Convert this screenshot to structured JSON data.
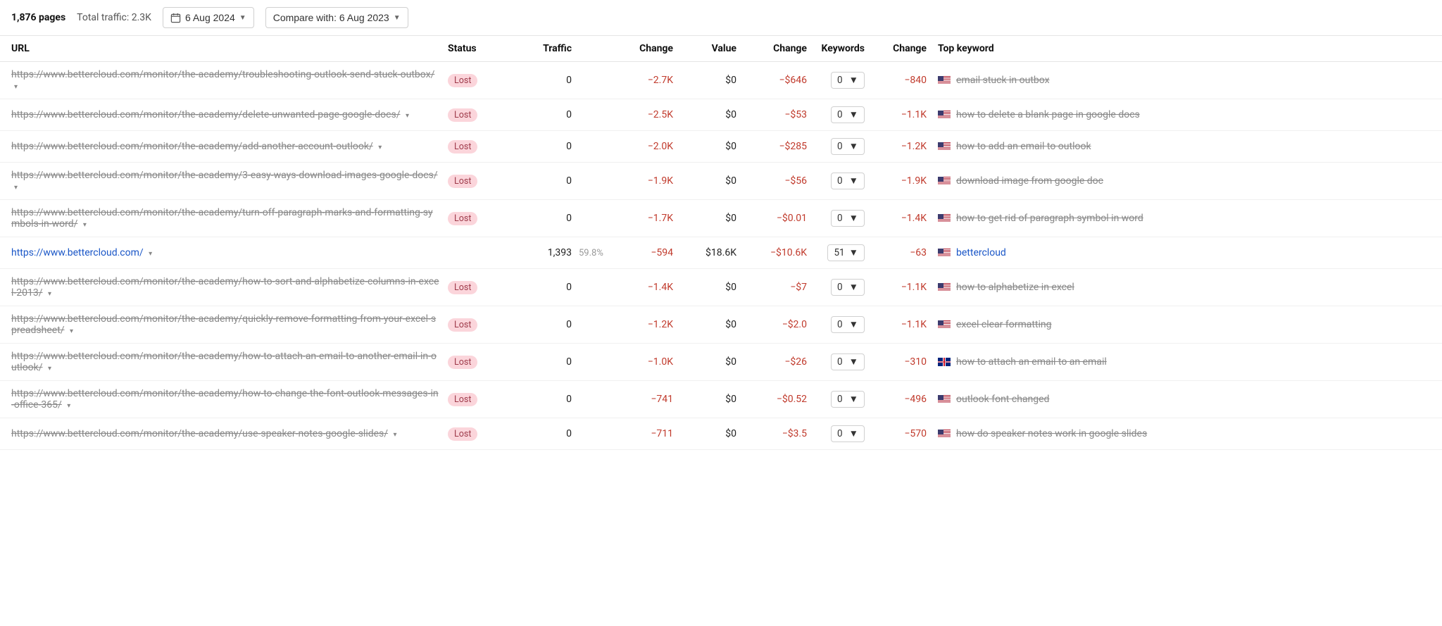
{
  "toolbar": {
    "pages_count": "1,876 pages",
    "total_traffic": "Total traffic: 2.3K",
    "date_btn": "6 Aug 2024",
    "compare_btn": "Compare with: 6 Aug 2023"
  },
  "columns": {
    "url": "URL",
    "status": "Status",
    "traffic": "Traffic",
    "change1": "Change",
    "value": "Value",
    "change2": "Change",
    "keywords": "Keywords",
    "change3": "Change",
    "topkw": "Top keyword"
  },
  "rows": [
    {
      "url": "https://www.bettercloud.com/monitor/the-academy/troubleshooting-outlook-send-stuck-outbox/",
      "lost": true,
      "status": "Lost",
      "traffic": "0",
      "traffic_pct": "",
      "change1": "−2.7K",
      "value": "$0",
      "change2": "−$646",
      "keywords": "0",
      "change3": "−840",
      "flag": "us",
      "topkw": "email stuck in outbox",
      "active": false
    },
    {
      "url": "https://www.bettercloud.com/monitor/the-academy/delete-unwanted-page-google-docs/",
      "lost": true,
      "status": "Lost",
      "traffic": "0",
      "traffic_pct": "",
      "change1": "−2.5K",
      "value": "$0",
      "change2": "−$53",
      "keywords": "0",
      "change3": "−1.1K",
      "flag": "us",
      "topkw": "how to delete a blank page in google docs",
      "active": false
    },
    {
      "url": "https://www.bettercloud.com/monitor/the-academy/add-another-account-outlook/",
      "lost": true,
      "status": "Lost",
      "traffic": "0",
      "traffic_pct": "",
      "change1": "−2.0K",
      "value": "$0",
      "change2": "−$285",
      "keywords": "0",
      "change3": "−1.2K",
      "flag": "us",
      "topkw": "how to add an email to outlook",
      "active": false
    },
    {
      "url": "https://www.bettercloud.com/monitor/the-academy/3-easy-ways-download-images-google-docs/",
      "lost": true,
      "status": "Lost",
      "traffic": "0",
      "traffic_pct": "",
      "change1": "−1.9K",
      "value": "$0",
      "change2": "−$56",
      "keywords": "0",
      "change3": "−1.9K",
      "flag": "us",
      "topkw": "download image from google doc",
      "active": false
    },
    {
      "url": "https://www.bettercloud.com/monitor/the-academy/turn-off-paragraph-marks-and-formatting-symbols-in-word/",
      "lost": true,
      "status": "Lost",
      "traffic": "0",
      "traffic_pct": "",
      "change1": "−1.7K",
      "value": "$0",
      "change2": "−$0.01",
      "keywords": "0",
      "change3": "−1.4K",
      "flag": "us",
      "topkw": "how to get rid of paragraph symbol in word",
      "active": false
    },
    {
      "url": "https://www.bettercloud.com/",
      "lost": false,
      "status": "",
      "traffic": "1,393",
      "traffic_pct": "59.8%",
      "change1": "−594",
      "value": "$18.6K",
      "change2": "−$10.6K",
      "keywords": "51",
      "change3": "−63",
      "flag": "us",
      "topkw": "bettercloud",
      "active": true
    },
    {
      "url": "https://www.bettercloud.com/monitor/the-academy/how-to-sort-and-alphabetize-columns-in-excel-2013/",
      "lost": true,
      "status": "Lost",
      "traffic": "0",
      "traffic_pct": "",
      "change1": "−1.4K",
      "value": "$0",
      "change2": "−$7",
      "keywords": "0",
      "change3": "−1.1K",
      "flag": "us",
      "topkw": "how to alphabetize in excel",
      "active": false
    },
    {
      "url": "https://www.bettercloud.com/monitor/the-academy/quickly-remove-formatting-from-your-excel-spreadsheet/",
      "lost": true,
      "status": "Lost",
      "traffic": "0",
      "traffic_pct": "",
      "change1": "−1.2K",
      "value": "$0",
      "change2": "−$2.0",
      "keywords": "0",
      "change3": "−1.1K",
      "flag": "us",
      "topkw": "excel clear formatting",
      "active": false
    },
    {
      "url": "https://www.bettercloud.com/monitor/the-academy/how-to-attach-an-email-to-another-email-in-outlook/",
      "lost": true,
      "status": "Lost",
      "traffic": "0",
      "traffic_pct": "",
      "change1": "−1.0K",
      "value": "$0",
      "change2": "−$26",
      "keywords": "0",
      "change3": "−310",
      "flag": "uk",
      "topkw": "how to attach an email to an email",
      "active": false
    },
    {
      "url": "https://www.bettercloud.com/monitor/the-academy/how-to-change-the-font-outlook-messages-in-office-365/",
      "lost": true,
      "status": "Lost",
      "traffic": "0",
      "traffic_pct": "",
      "change1": "−741",
      "value": "$0",
      "change2": "−$0.52",
      "keywords": "0",
      "change3": "−496",
      "flag": "us",
      "topkw": "outlook font changed",
      "active": false
    },
    {
      "url": "https://www.bettercloud.com/monitor/the-academy/use-speaker-notes-google-slides/",
      "lost": true,
      "status": "Lost",
      "traffic": "0",
      "traffic_pct": "",
      "change1": "−711",
      "value": "$0",
      "change2": "−$3.5",
      "keywords": "0",
      "change3": "−570",
      "flag": "us",
      "topkw": "how do speaker notes work in google slides",
      "active": false
    }
  ]
}
